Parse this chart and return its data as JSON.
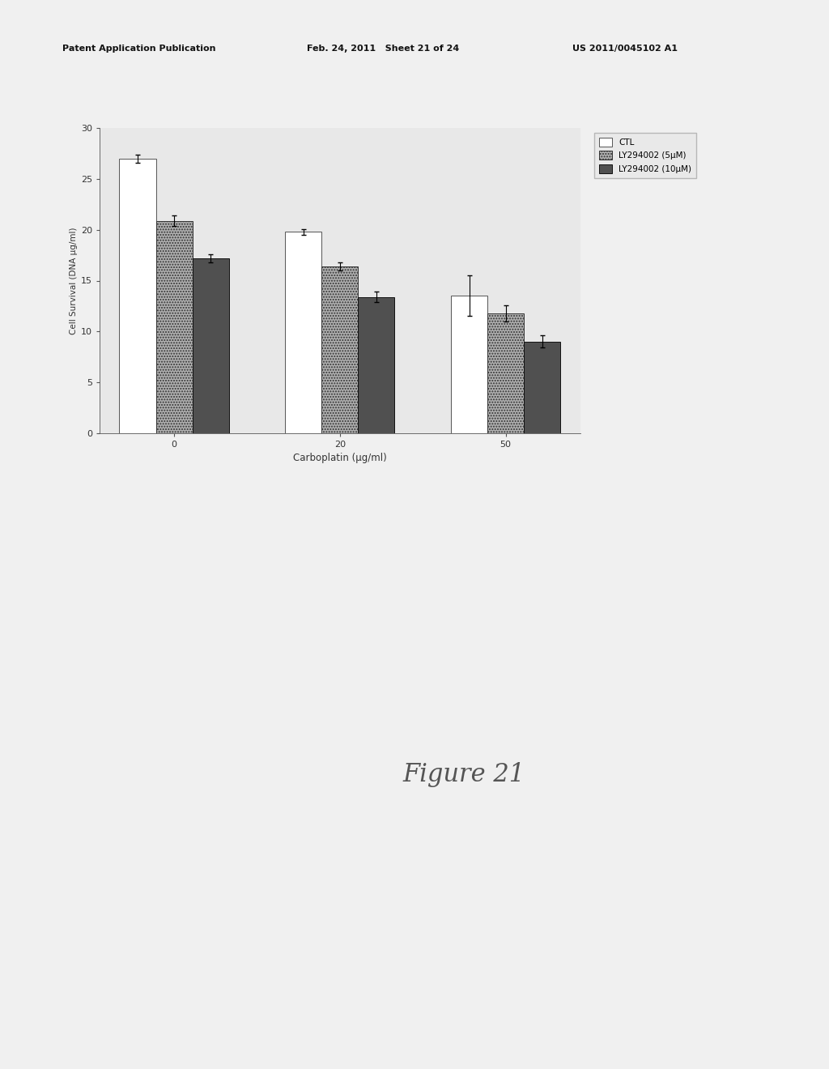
{
  "groups": [
    "0",
    "20",
    "50"
  ],
  "xlabel": "Carboplatin (μg/ml)",
  "ylabel": "Cell Survival (DNA μg/ml)",
  "ylim": [
    0,
    30
  ],
  "yticks": [
    0,
    5,
    10,
    15,
    20,
    25,
    30
  ],
  "legend_labels": [
    "CTL",
    "LY294002 (5μM)",
    "LY294002 (10μM)"
  ],
  "bar_colors": [
    "white",
    "#b0b0b0",
    "#505050"
  ],
  "bar_edgecolors": [
    "#555555",
    "#333333",
    "#111111"
  ],
  "bar_hatches": [
    "",
    ".....",
    ""
  ],
  "values": [
    [
      27.0,
      20.9,
      17.2
    ],
    [
      19.8,
      16.4,
      13.4
    ],
    [
      13.5,
      11.8,
      9.0
    ]
  ],
  "errors": [
    [
      0.4,
      0.5,
      0.4
    ],
    [
      0.3,
      0.4,
      0.5
    ],
    [
      2.0,
      0.8,
      0.6
    ]
  ],
  "figure_width": 10.24,
  "figure_height": 13.2,
  "figure_title": "Figure 21",
  "bar_width": 0.22,
  "bg_color": "#f0f0f0",
  "chart_bg": "#e8e8e8",
  "header_left": "Patent Application Publication",
  "header_mid": "Feb. 24, 2011   Sheet 21 of 24",
  "header_right": "US 2011/0045102 A1"
}
